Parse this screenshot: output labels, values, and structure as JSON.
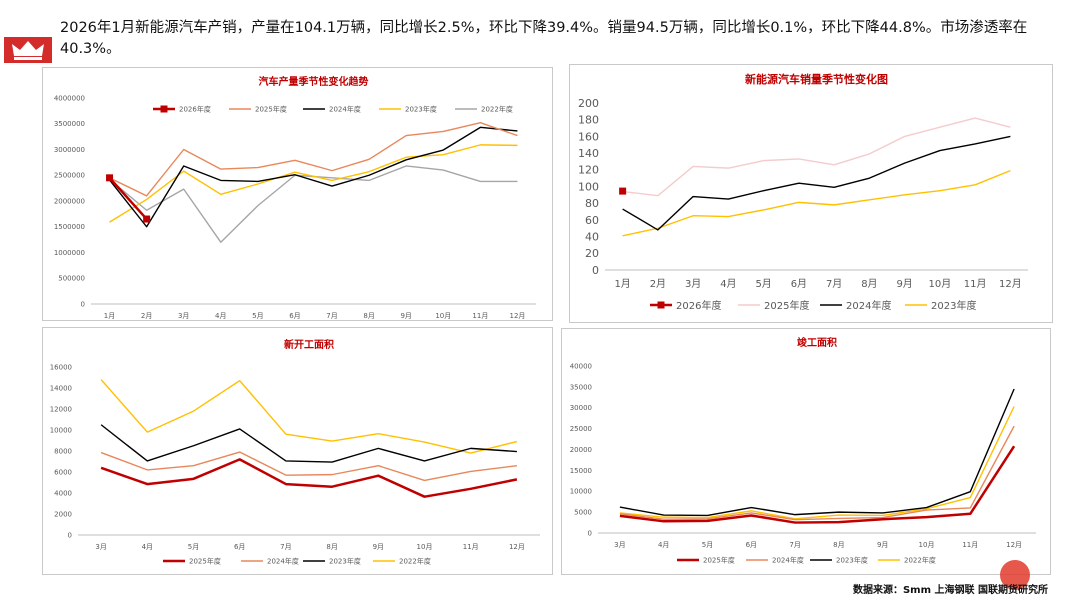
{
  "headline": "2026年1月新能源汽车产销，产量在104.1万辆，同比增长2.5%，环比下降39.4%。销量94.5万辆，同比增长0.1%，环比下降44.8%。市场渗透率在40.3%。",
  "source": "数据来源：Smm 上海钢联 国联期货研究所",
  "chart_data": [
    {
      "id": "c1",
      "type": "line",
      "title": "汽车产量季节性变化趋势",
      "categories": [
        "1月",
        "2月",
        "3月",
        "4月",
        "5月",
        "6月",
        "7月",
        "8月",
        "9月",
        "10月",
        "11月",
        "12月"
      ],
      "ylim": [
        0,
        4000000
      ],
      "yticks": [
        0,
        500000,
        1000000,
        1500000,
        2000000,
        2500000,
        3000000,
        3500000,
        4000000
      ],
      "legend_position": "top",
      "series": [
        {
          "name": "2026年度",
          "color": "#c00000",
          "marker": true,
          "width": 2.5,
          "values": [
            2450000,
            1650000,
            null,
            null,
            null,
            null,
            null,
            null,
            null,
            null,
            null,
            null
          ]
        },
        {
          "name": "2025年度",
          "color": "#e8875a",
          "width": 1.4,
          "values": [
            2450000,
            2100000,
            3000000,
            2620000,
            2650000,
            2790000,
            2590000,
            2810000,
            3270000,
            3350000,
            3520000,
            3270000
          ]
        },
        {
          "name": "2024年度",
          "color": "#000000",
          "width": 1.4,
          "values": [
            2410000,
            1500000,
            2680000,
            2400000,
            2380000,
            2510000,
            2290000,
            2500000,
            2800000,
            2990000,
            3430000,
            3360000
          ]
        },
        {
          "name": "2023年度",
          "color": "#ffc000",
          "width": 1.4,
          "values": [
            1590000,
            2030000,
            2580000,
            2130000,
            2330000,
            2560000,
            2400000,
            2570000,
            2850000,
            2900000,
            3090000,
            3080000
          ]
        },
        {
          "name": "2022年度",
          "color": "#a6a6a6",
          "width": 1.4,
          "values": [
            2420000,
            1820000,
            2230000,
            1200000,
            1910000,
            2500000,
            2450000,
            2400000,
            2680000,
            2600000,
            2380000,
            2380000
          ]
        }
      ]
    },
    {
      "id": "c2",
      "type": "line",
      "title": "新能源汽车销量季节性变化图",
      "categories": [
        "1月",
        "2月",
        "3月",
        "4月",
        "5月",
        "6月",
        "7月",
        "8月",
        "9月",
        "10月",
        "11月",
        "12月"
      ],
      "ylim": [
        0,
        200
      ],
      "yticks": [
        0,
        20,
        40,
        60,
        80,
        100,
        120,
        140,
        160,
        180,
        200
      ],
      "legend_position": "bottom",
      "series": [
        {
          "name": "2026年度",
          "color": "#c00000",
          "marker": true,
          "width": 2.5,
          "values": [
            94.5,
            null,
            null,
            null,
            null,
            null,
            null,
            null,
            null,
            null,
            null,
            null
          ]
        },
        {
          "name": "2025年度",
          "color": "#f4cccc",
          "width": 1.4,
          "values": [
            94,
            89,
            124,
            122,
            131,
            133,
            126,
            139,
            160,
            171,
            182,
            171
          ]
        },
        {
          "name": "2024年度",
          "color": "#000000",
          "width": 1.4,
          "values": [
            73,
            48,
            88,
            85,
            95,
            104,
            99,
            110,
            128,
            143,
            151,
            160
          ]
        },
        {
          "name": "2023年度",
          "color": "#ffc000",
          "width": 1.4,
          "values": [
            41,
            50,
            65,
            64,
            72,
            81,
            78,
            84,
            90,
            95,
            102,
            119
          ]
        }
      ]
    },
    {
      "id": "c3",
      "type": "line",
      "title": "新开工面积",
      "categories": [
        "3月",
        "4月",
        "5月",
        "6月",
        "7月",
        "8月",
        "9月",
        "10月",
        "11月",
        "12月"
      ],
      "ylim": [
        0,
        16000
      ],
      "yticks": [
        0,
        2000,
        4000,
        6000,
        8000,
        10000,
        12000,
        14000,
        16000
      ],
      "legend_position": "bottom",
      "series": [
        {
          "name": "2025年度",
          "color": "#c00000",
          "width": 2.5,
          "values": [
            6400,
            4850,
            5350,
            7200,
            4850,
            4600,
            5650,
            3650,
            4400,
            5300
          ]
        },
        {
          "name": "2024年度",
          "color": "#e8875a",
          "width": 1.4,
          "values": [
            7850,
            6200,
            6600,
            7900,
            5700,
            5750,
            6600,
            5200,
            6050,
            6600
          ]
        },
        {
          "name": "2023年度",
          "color": "#000000",
          "width": 1.4,
          "values": [
            10500,
            7050,
            8500,
            10100,
            7050,
            6950,
            8250,
            7050,
            8250,
            7950
          ]
        },
        {
          "name": "2022年度",
          "color": "#ffc000",
          "width": 1.4,
          "values": [
            14800,
            9800,
            11800,
            14700,
            9600,
            8950,
            9650,
            8850,
            7800,
            8900
          ]
        }
      ]
    },
    {
      "id": "c4",
      "type": "line",
      "title": "竣工面积",
      "categories": [
        "3月",
        "4月",
        "5月",
        "6月",
        "7月",
        "8月",
        "9月",
        "10月",
        "11月",
        "12月"
      ],
      "ylim": [
        0,
        40000
      ],
      "yticks": [
        0,
        5000,
        10000,
        15000,
        20000,
        25000,
        30000,
        35000,
        40000
      ],
      "legend_position": "bottom",
      "series": [
        {
          "name": "2025年度",
          "color": "#c00000",
          "width": 2.5,
          "values": [
            4100,
            2800,
            2900,
            4200,
            2500,
            2600,
            3300,
            3800,
            4600,
            20800
          ]
        },
        {
          "name": "2024年度",
          "color": "#e8875a",
          "width": 1.4,
          "values": [
            4600,
            3300,
            3400,
            4800,
            3200,
            3500,
            3700,
            5500,
            6000,
            25600
          ]
        },
        {
          "name": "2023年度",
          "color": "#000000",
          "width": 1.4,
          "values": [
            6200,
            4300,
            4200,
            6100,
            4400,
            5000,
            4800,
            6100,
            9900,
            34500
          ]
        },
        {
          "name": "2022年度",
          "color": "#ffc000",
          "width": 1.4,
          "values": [
            4800,
            3800,
            3700,
            5300,
            3400,
            4300,
            4200,
            5800,
            8500,
            30300
          ]
        }
      ]
    }
  ]
}
